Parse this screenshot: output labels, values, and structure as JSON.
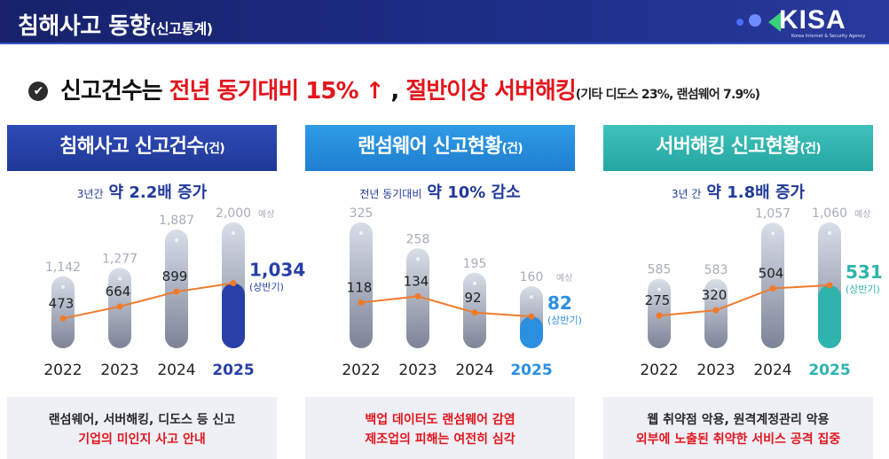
{
  "header": {
    "title": "침해사고 동향",
    "title_suffix": "(신고통계)",
    "logo_text": "KISA",
    "logo_subtext": "Korea Internet & Security Agency"
  },
  "headline": {
    "part1": "신고건수는 ",
    "red1": "전년 동기대비 15% ↑",
    "part2": " , ",
    "red2": "절반이상 서버해킹",
    "note": "(기타 디도스 23%, 랜섬웨어 7.9%)"
  },
  "colors": {
    "card1_accent": "#2840a8",
    "card2_accent": "#2b8fe0",
    "card3_accent": "#2fb3ad",
    "line": "#f07a2a",
    "highlight_red": "#e3161d"
  },
  "cards": [
    {
      "title": "침해사고 신고건수",
      "unit": "(건)",
      "sub_small": "3년간",
      "sub_big": "약 2.2배 증가",
      "footer_line1": "랜섬웨어, 서버해킹, 디도스 등 신고",
      "footer_line2": "기업의 미인지 사고 안내"
    },
    {
      "title": "랜섬웨어 신고현황",
      "unit": "(건)",
      "sub_small": "전년 동기대비",
      "sub_big": "약 10% 감소",
      "footer_line1": "백업 데이터도 랜섬웨어 감염",
      "footer_line2": "제조업의 피해는 여전히 심각"
    },
    {
      "title": "서버해킹 신고현황",
      "unit": "(건)",
      "sub_small": "3년 간",
      "sub_big": "약 1.8배 증가",
      "footer_line1": "웹 취약점 악용, 원격계정관리 악용",
      "footer_line2": "외부에 노출된 취약한 서비스 공격 집중"
    }
  ],
  "chart_data": [
    {
      "type": "bar",
      "categories": [
        "2022",
        "2023",
        "2024",
        "2025"
      ],
      "bar_values": [
        1142,
        1277,
        1887,
        2000
      ],
      "bar_labels": [
        "1,142",
        "1,277",
        "1,887",
        "2,000"
      ],
      "bar_note_last": "예상",
      "line_values": [
        473,
        664,
        899,
        1034
      ],
      "line_labels": [
        "473",
        "664",
        "899",
        "1,034"
      ],
      "line_note_last": "(상반기)",
      "highlight_category": "2025"
    },
    {
      "type": "bar",
      "categories": [
        "2022",
        "2023",
        "2024",
        "2025"
      ],
      "bar_values": [
        325,
        258,
        195,
        160
      ],
      "bar_labels": [
        "325",
        "258",
        "195",
        "160"
      ],
      "bar_note_last": "예상",
      "line_values": [
        118,
        134,
        92,
        82
      ],
      "line_labels": [
        "118",
        "134",
        "92",
        "82"
      ],
      "line_note_last": "(상반기)",
      "highlight_category": "2025"
    },
    {
      "type": "bar",
      "categories": [
        "2022",
        "2023",
        "2024",
        "2025"
      ],
      "bar_values": [
        585,
        583,
        1057,
        1060
      ],
      "bar_labels": [
        "585",
        "583",
        "1,057",
        "1,060"
      ],
      "bar_note_last": "예상",
      "line_values": [
        275,
        320,
        504,
        531
      ],
      "line_labels": [
        "275",
        "320",
        "504",
        "531"
      ],
      "line_note_last": "(상반기)",
      "highlight_category": "2025"
    }
  ]
}
